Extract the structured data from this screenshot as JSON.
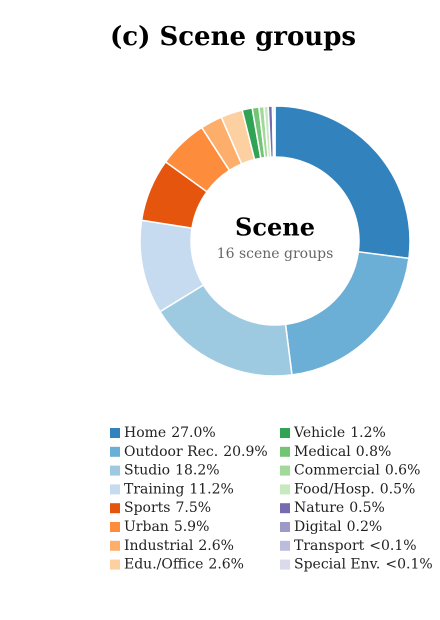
{
  "chart_data": {
    "type": "donut",
    "title": "(c) Scene groups",
    "center_title": "Scene",
    "center_subtitle": "16 scene groups",
    "categories": [
      "Home",
      "Outdoor Rec.",
      "Studio",
      "Training",
      "Sports",
      "Urban",
      "Industrial",
      "Edu./Office",
      "Vehicle",
      "Medical",
      "Commercial",
      "Food/Hosp.",
      "Nature",
      "Digital",
      "Transport",
      "Special Env."
    ],
    "values": [
      27.0,
      20.9,
      18.2,
      11.2,
      7.5,
      5.9,
      2.6,
      2.6,
      1.2,
      0.8,
      0.6,
      0.5,
      0.5,
      0.2,
      0.05,
      0.05
    ],
    "value_labels": [
      "27.0%",
      "20.9%",
      "18.2%",
      "11.2%",
      "7.5%",
      "5.9%",
      "2.6%",
      "2.6%",
      "1.2%",
      "0.8%",
      "0.6%",
      "0.5%",
      "0.5%",
      "0.2%",
      "<0.1%",
      "<0.1%"
    ],
    "colors": [
      "#3182bd",
      "#6baed6",
      "#9ecae1",
      "#c6dbef",
      "#e6550d",
      "#fd8d3c",
      "#fdae6b",
      "#fdd0a2",
      "#31a354",
      "#74c476",
      "#a1d99b",
      "#c7e9c0",
      "#756bb1",
      "#9e9ac8",
      "#bcbddc",
      "#dadaeb"
    ]
  }
}
